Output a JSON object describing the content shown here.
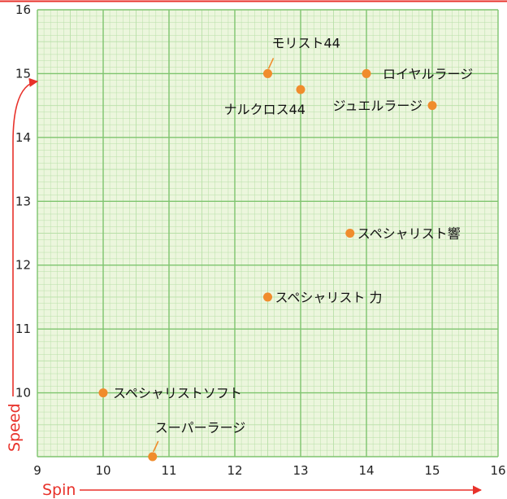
{
  "chart_data": {
    "type": "scatter",
    "xlabel": "Spin",
    "ylabel": "Speed",
    "xlim": [
      9,
      16
    ],
    "ylim": [
      9,
      16
    ],
    "x_ticks": [
      "9",
      "10",
      "11",
      "12",
      "13",
      "14",
      "15",
      "16"
    ],
    "y_ticks": [
      "16",
      "15",
      "14",
      "13",
      "12",
      "11",
      "10"
    ],
    "grid": true,
    "points": [
      {
        "label": "モリスト44",
        "x": 12.5,
        "y": 15.0
      },
      {
        "label": "ロイヤルラージ",
        "x": 14.0,
        "y": 15.0
      },
      {
        "label": "ナルクロス44",
        "x": 13.0,
        "y": 14.75
      },
      {
        "label": "ジュエルラージ",
        "x": 15.0,
        "y": 14.5
      },
      {
        "label": "スペシャリスト響",
        "x": 13.75,
        "y": 12.5
      },
      {
        "label": "スペシャリスト 力",
        "x": 12.5,
        "y": 11.5
      },
      {
        "label": "スペシャリストソフト",
        "x": 10.0,
        "y": 10.0
      },
      {
        "label": "スーパーラージ",
        "x": 10.75,
        "y": 9.0
      }
    ]
  },
  "colors": {
    "background": "#ecf6dd",
    "grid_minor": "#b8e0a8",
    "grid_major": "#7ec46e",
    "marker": "#f08c2c",
    "axis_title": "#e8312a"
  }
}
